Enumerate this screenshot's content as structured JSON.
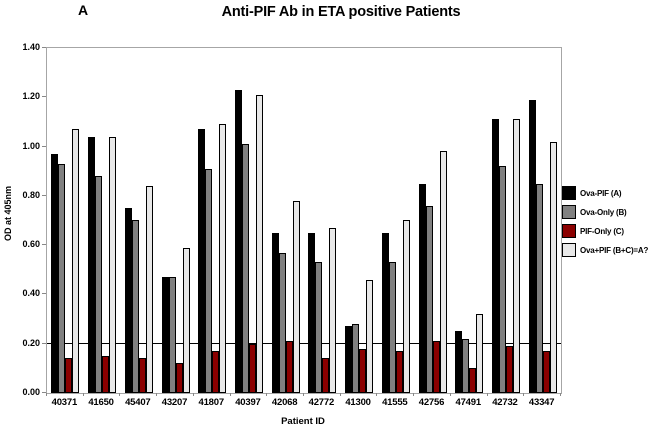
{
  "panel_label": "A",
  "chart_data": {
    "type": "bar",
    "title": "Anti-PIF Ab in ETA positive Patients",
    "xlabel": "Patient ID",
    "ylabel": "OD at 405nm",
    "ylim": [
      0,
      1.4
    ],
    "ytick_step": 0.2,
    "ytick_labels": [
      "0.00",
      "0.20",
      "0.40",
      "0.60",
      "0.80",
      "1.00",
      "1.20",
      "1.40"
    ],
    "reference_line_y": 0.2,
    "grid": false,
    "legend_position": "right",
    "categories": [
      "40371",
      "41650",
      "45407",
      "43207",
      "41807",
      "40397",
      "42068",
      "42772",
      "41300",
      "41555",
      "42756",
      "47491",
      "42732",
      "43347"
    ],
    "series": [
      {
        "name": "Ova-PIF (A)",
        "color": "#000000",
        "values": [
          0.97,
          1.04,
          0.75,
          0.47,
          1.07,
          1.23,
          0.65,
          0.65,
          0.27,
          0.65,
          0.85,
          0.25,
          1.11,
          1.19
        ]
      },
      {
        "name": "Ova-Only (B)",
        "color": "#808080",
        "values": [
          0.93,
          0.88,
          0.7,
          0.47,
          0.91,
          1.01,
          0.57,
          0.53,
          0.28,
          0.53,
          0.76,
          0.22,
          0.92,
          0.85
        ]
      },
      {
        "name": "PIF-Only (C)",
        "color": "#8b0000",
        "values": [
          0.14,
          0.15,
          0.14,
          0.12,
          0.17,
          0.2,
          0.21,
          0.14,
          0.18,
          0.17,
          0.21,
          0.1,
          0.19,
          0.17
        ]
      },
      {
        "name": "Ova+PIF (B+C)=A?",
        "color": "#e8e8e8",
        "values": [
          1.07,
          1.04,
          0.84,
          0.59,
          1.09,
          1.21,
          0.78,
          0.67,
          0.46,
          0.7,
          0.98,
          0.32,
          1.11,
          1.02
        ]
      }
    ]
  }
}
